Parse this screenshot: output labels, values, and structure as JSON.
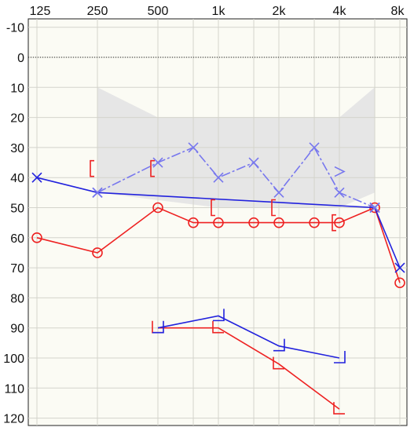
{
  "chart_data": {
    "type": "line",
    "chart_kind": "audiogram",
    "x_ticks": [
      "125",
      "250",
      "500",
      "1k",
      "2k",
      "4k",
      "8k"
    ],
    "y_ticks": [
      -10,
      0,
      10,
      20,
      30,
      40,
      50,
      60,
      70,
      80,
      90,
      100,
      110,
      120
    ],
    "x_range_hz": [
      125,
      8000
    ],
    "x_scale": "log",
    "y_range_db": [
      -12,
      122
    ],
    "y_inverted": true,
    "grid": true,
    "zero_reference_line": "dotted",
    "speech_banana": [
      [
        250,
        10
      ],
      [
        500,
        20
      ],
      [
        1000,
        20
      ],
      [
        2000,
        20
      ],
      [
        3000,
        20
      ],
      [
        4000,
        20
      ],
      [
        6000,
        10
      ],
      [
        6000,
        45
      ],
      [
        4000,
        50
      ],
      [
        2000,
        50
      ],
      [
        1000,
        50
      ],
      [
        250,
        45
      ]
    ],
    "series": [
      {
        "color": "#ee2222",
        "symbol": "circle",
        "connected": true,
        "points": [
          [
            125,
            60
          ],
          [
            250,
            65
          ],
          [
            500,
            50
          ],
          [
            750,
            55
          ],
          [
            1000,
            55
          ],
          [
            1500,
            55
          ],
          [
            2000,
            55
          ],
          [
            3000,
            55
          ],
          [
            4000,
            55
          ],
          [
            6000,
            50
          ],
          [
            8000,
            75
          ]
        ]
      },
      {
        "color": "#2222dd",
        "symbol": "x",
        "connected": true,
        "points": [
          [
            125,
            40
          ],
          [
            250,
            45
          ],
          [
            6000,
            50
          ],
          [
            8000,
            70
          ]
        ]
      },
      {
        "color": "#7777ee",
        "symbol": "x",
        "connected": true,
        "dashed": true,
        "points": [
          [
            250,
            45
          ],
          [
            500,
            35
          ],
          [
            750,
            30
          ],
          [
            1000,
            40
          ],
          [
            1500,
            35
          ],
          [
            2000,
            45
          ],
          [
            3000,
            30
          ],
          [
            4000,
            45
          ],
          [
            6000,
            50
          ]
        ]
      },
      {
        "color": "#7777ee",
        "symbol": "right-angle",
        "connected": false,
        "points": [
          [
            4000,
            38
          ]
        ]
      },
      {
        "color": "#ee2222",
        "symbol": "left-bracket",
        "connected": false,
        "points": [
          [
            250,
            37
          ],
          [
            500,
            37
          ],
          [
            1000,
            50
          ],
          [
            2000,
            50
          ],
          [
            4000,
            55
          ]
        ]
      },
      {
        "color": "#ee2222",
        "symbol": "bone-right",
        "connected": true,
        "points": [
          [
            500,
            90
          ],
          [
            1000,
            90
          ],
          [
            2000,
            102
          ],
          [
            4000,
            117
          ]
        ]
      },
      {
        "color": "#2222dd",
        "symbol": "bone-left",
        "connected": true,
        "points": [
          [
            500,
            90
          ],
          [
            1000,
            86
          ],
          [
            2000,
            96
          ],
          [
            4000,
            100
          ]
        ]
      }
    ]
  }
}
